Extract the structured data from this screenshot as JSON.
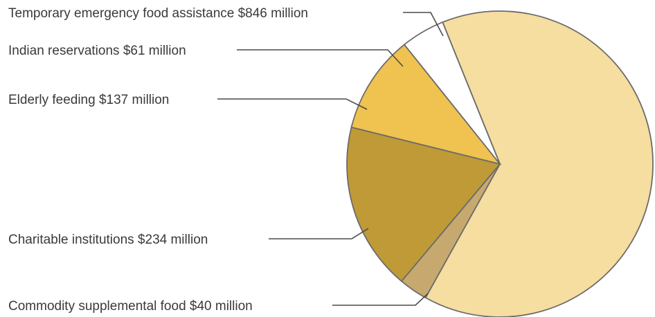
{
  "chart_data": {
    "type": "pie",
    "title": "",
    "unit": "$ million",
    "slices": [
      {
        "label": "Temporary emergency food assistance $846 million",
        "name": "Temporary emergency food assistance",
        "value": 846,
        "color": "#f6dda0"
      },
      {
        "label": "Commodity supplemental food $40 million",
        "name": "Commodity supplemental food",
        "value": 40,
        "color": "#c7a96f"
      },
      {
        "label": "Charitable institutions $234 million",
        "name": "Charitable institutions",
        "value": 234,
        "color": "#bf9a36"
      },
      {
        "label": "Elderly feeding $137 million",
        "name": "Elderly feeding",
        "value": 137,
        "color": "#f0c24f"
      },
      {
        "label": "Indian reservations $61 million",
        "name": "Indian reservations",
        "value": 61,
        "color": "#ffffff"
      }
    ]
  }
}
